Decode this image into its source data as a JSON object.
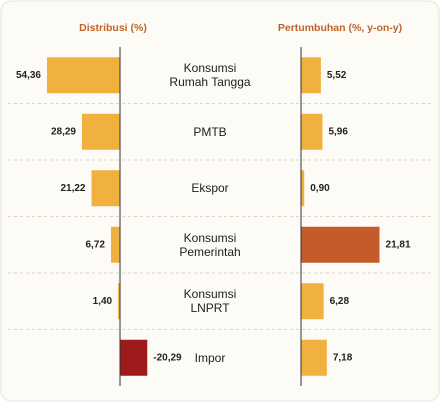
{
  "chart_data": [
    {
      "type": "bar",
      "orientation": "horizontal",
      "title": "Distribusi (%)",
      "categories": [
        "Konsumsi\nRumah Tangga",
        "PMTB",
        "Ekspor",
        "Konsumsi\nPemerintah",
        "Konsumsi\nLNPRT",
        "Impor"
      ],
      "values": [
        54.36,
        28.29,
        21.22,
        6.72,
        1.4,
        -20.29
      ],
      "value_labels": [
        "54,36",
        "28,29",
        "21,22",
        "6,72",
        "1,40",
        "-20,29"
      ],
      "colors": [
        "#f0b13e",
        "#f0b13e",
        "#f0b13e",
        "#f0b13e",
        "#f0b13e",
        "#9e1b1b"
      ],
      "xlim": [
        60,
        -25
      ]
    },
    {
      "type": "bar",
      "orientation": "horizontal",
      "title": "Pertumbuhan (%, y-on-y)",
      "values": [
        5.52,
        5.96,
        0.9,
        21.81,
        6.28,
        7.18
      ],
      "value_labels": [
        "5,52",
        "5,96",
        "0,90",
        "21,81",
        "6,28",
        "7,18"
      ],
      "colors": [
        "#f0b13e",
        "#f0b13e",
        "#f0b13e",
        "#c55a2a",
        "#f0b13e",
        "#f0b13e"
      ],
      "xlim": [
        0,
        25
      ]
    }
  ]
}
